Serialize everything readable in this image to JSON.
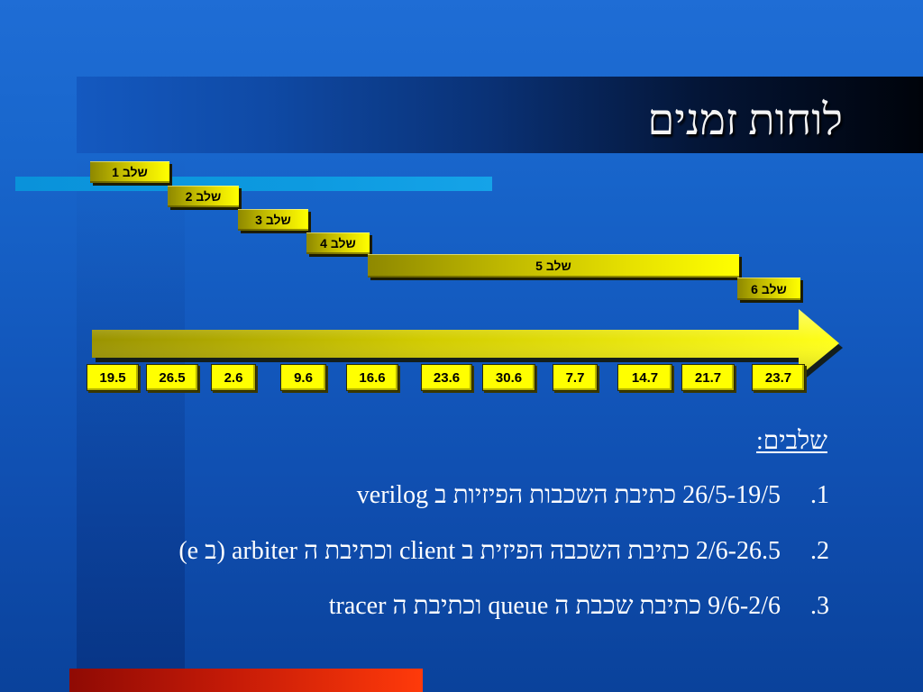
{
  "slide": {
    "title": "לוחות זמנים"
  },
  "timeline": {
    "stages": [
      "שלב 1",
      "שלב 2",
      "שלב 3",
      "שלב 4",
      "שלב 5",
      "שלב 6"
    ],
    "dates": [
      "19.5",
      "26.5",
      "2.6",
      "9.6",
      "16.6",
      "23.6",
      "30.6",
      "7.7",
      "14.7",
      "21.7",
      "23.7"
    ]
  },
  "stages_list": {
    "heading": "שלבים:",
    "items": [
      {
        "number": "1.",
        "text": "26/5-19/5 כתיבת השכבות הפיזיות ב verilog"
      },
      {
        "number": "2.",
        "text": "2/6-26.5 כתיבת השכבה הפיזית ב client וכתיבת ה arbiter (ב e)"
      },
      {
        "number": "3.",
        "text": "9/6-2/6 כתיבת שכבת ה queue וכתיבת ה tracer"
      }
    ]
  },
  "colors": {
    "stage_bar_highlight": "#ffff00",
    "date_box": "#ffff00",
    "accent_cyan": "#0d9ae0",
    "accent_red": "#ff3a0a",
    "text": "#ffffff"
  }
}
